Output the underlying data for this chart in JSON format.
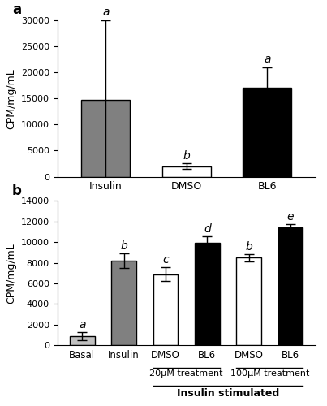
{
  "panel_a": {
    "categories": [
      "Insulin",
      "DMSO",
      "BL6"
    ],
    "values": [
      14700,
      2000,
      17000
    ],
    "errors": [
      15300,
      500,
      4000
    ],
    "colors": [
      "#808080",
      "#ffffff",
      "#000000"
    ],
    "edge_colors": [
      "#000000",
      "#000000",
      "#000000"
    ],
    "letters": [
      "a",
      "b",
      "a"
    ],
    "ylabel": "CPM/mg/mL",
    "ylim": [
      0,
      30000
    ],
    "yticks": [
      0,
      5000,
      10000,
      15000,
      20000,
      25000,
      30000
    ]
  },
  "panel_b": {
    "categories": [
      "Basal",
      "Insulin",
      "DMSO",
      "BL6",
      "DMSO",
      "BL6"
    ],
    "values": [
      900,
      8200,
      6900,
      9900,
      8500,
      11400
    ],
    "errors": [
      400,
      700,
      700,
      700,
      350,
      350
    ],
    "colors": [
      "#c0c0c0",
      "#808080",
      "#ffffff",
      "#000000",
      "#ffffff",
      "#000000"
    ],
    "edge_colors": [
      "#000000",
      "#000000",
      "#000000",
      "#000000",
      "#000000",
      "#000000"
    ],
    "letters": [
      "a",
      "b",
      "c",
      "d",
      "b",
      "e"
    ],
    "ylabel": "CPM/mg/mL",
    "ylim": [
      0,
      14000
    ],
    "yticks": [
      0,
      2000,
      4000,
      6000,
      8000,
      10000,
      12000,
      14000
    ],
    "group_labels": [
      "20μM treatment",
      "100μM treatment"
    ],
    "bottom_label": "Insulin stimulated"
  }
}
